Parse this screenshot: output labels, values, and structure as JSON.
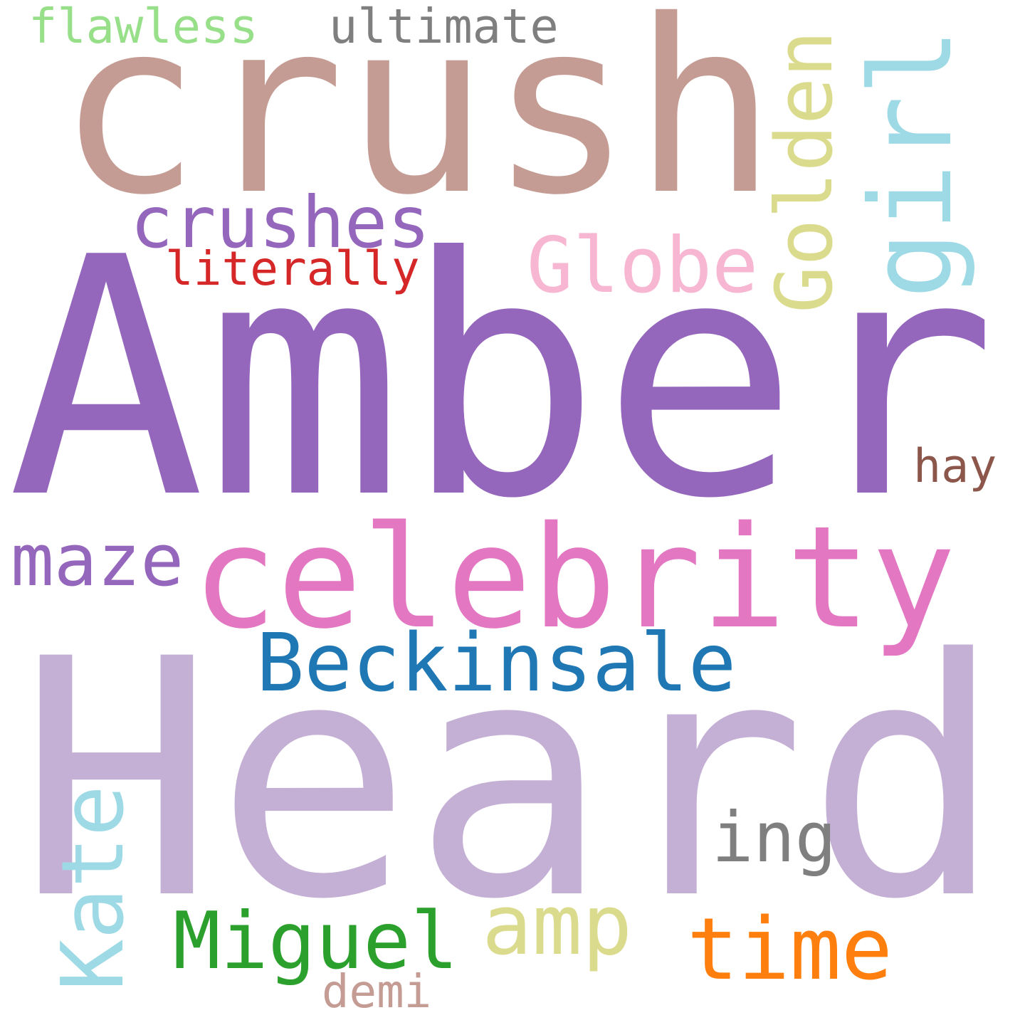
{
  "words": [
    "flawless",
    "ultimate",
    "crush",
    "crushes",
    "literally",
    "Globe",
    "Golden",
    "girl",
    "Amber",
    "hay",
    "maze",
    "celebrity",
    "Beckinsale",
    "Heard",
    "ing",
    "Kate",
    "amp",
    "Miguel",
    "time",
    "demi"
  ]
}
